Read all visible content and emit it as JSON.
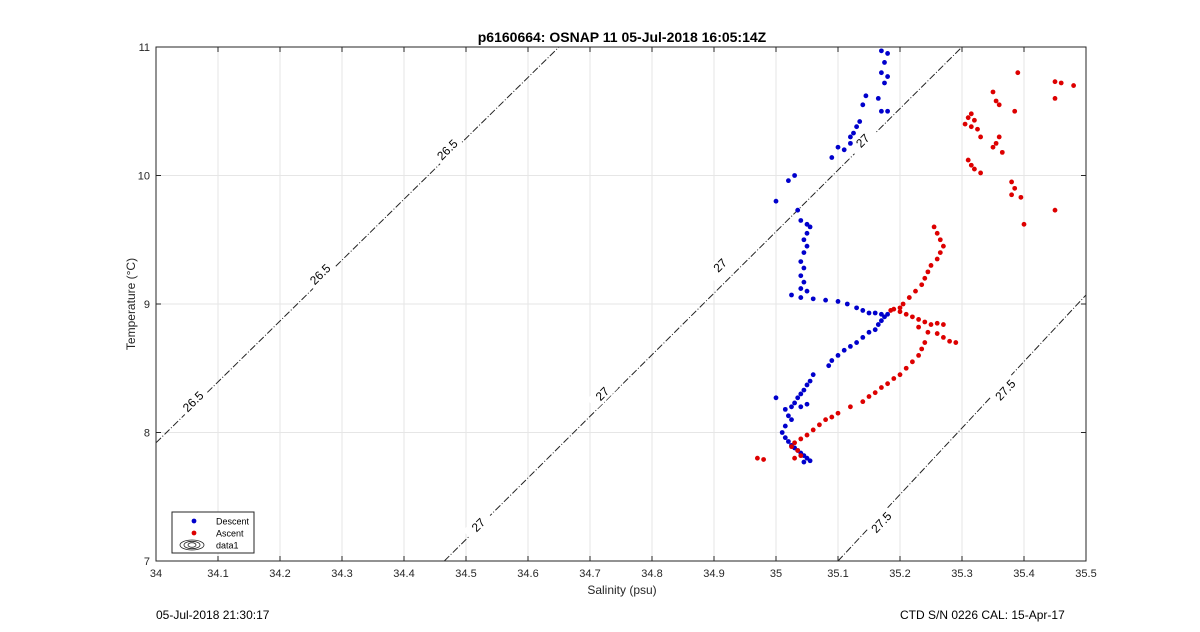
{
  "footer": {
    "left": "05-Jul-2018 21:30:17",
    "right": "CTD S/N 0226  CAL: 15-Apr-17"
  },
  "chart_data": {
    "type": "scatter",
    "title": "p6160664: OSNAP 11 05-Jul-2018 16:05:14Z",
    "xlabel": "Salinity (psu)",
    "ylabel": "Temperature (°C)",
    "xlim": [
      34,
      35.5
    ],
    "ylim": [
      7,
      11
    ],
    "xticks": [
      34,
      34.1,
      34.2,
      34.3,
      34.4,
      34.5,
      34.6,
      34.7,
      34.8,
      34.9,
      35,
      35.1,
      35.2,
      35.3,
      35.4,
      35.5
    ],
    "xtick_labels": [
      "34",
      "34.1",
      "34.2",
      "34.3",
      "34.4",
      "34.5",
      "34.6",
      "34.7",
      "34.8",
      "34.9",
      "35",
      "35.1",
      "35.2",
      "35.3",
      "35.4",
      "35.5"
    ],
    "yticks": [
      7,
      8,
      9,
      10,
      11
    ],
    "ytick_labels": [
      "7",
      "8",
      "9",
      "10",
      "11"
    ],
    "grid": true,
    "legend_position": "bottom-left",
    "legend": [
      "Descent",
      "Ascent",
      "data1"
    ],
    "contours": [
      {
        "level": 26.5,
        "label": "26.5",
        "line": [
          [
            34.0,
            7.92
          ],
          [
            34.65,
            11.0
          ]
        ],
        "label_positions": [
          [
            34.06,
            8.24
          ],
          [
            34.265,
            9.23
          ],
          [
            34.47,
            10.2
          ]
        ]
      },
      {
        "level": 27,
        "label": "27",
        "line": [
          [
            34.465,
            7.0
          ],
          [
            35.3,
            11.0
          ]
        ],
        "label_positions": [
          [
            34.52,
            7.28
          ],
          [
            34.72,
            8.3
          ],
          [
            34.91,
            9.3
          ],
          [
            35.14,
            10.27
          ]
        ]
      },
      {
        "level": 27.5,
        "label": "27.5",
        "line": [
          [
            35.1,
            7.0
          ],
          [
            35.5,
            9.07
          ]
        ],
        "label_positions": [
          [
            35.17,
            7.3
          ],
          [
            35.37,
            8.33
          ]
        ]
      }
    ],
    "series": [
      {
        "name": "Descent",
        "color": "#0000cc",
        "points": [
          [
            35.17,
            10.97
          ],
          [
            35.18,
            10.95
          ],
          [
            35.175,
            10.88
          ],
          [
            35.17,
            10.8
          ],
          [
            35.18,
            10.77
          ],
          [
            35.175,
            10.72
          ],
          [
            35.165,
            10.6
          ],
          [
            35.17,
            10.5
          ],
          [
            35.18,
            10.5
          ],
          [
            35.145,
            10.62
          ],
          [
            35.14,
            10.55
          ],
          [
            35.135,
            10.42
          ],
          [
            35.13,
            10.38
          ],
          [
            35.125,
            10.33
          ],
          [
            35.12,
            10.3
          ],
          [
            35.12,
            10.25
          ],
          [
            35.11,
            10.2
          ],
          [
            35.1,
            10.22
          ],
          [
            35.09,
            10.14
          ],
          [
            35.03,
            10.0
          ],
          [
            35.02,
            9.96
          ],
          [
            35.0,
            9.8
          ],
          [
            35.035,
            9.73
          ],
          [
            35.04,
            9.65
          ],
          [
            35.05,
            9.62
          ],
          [
            35.055,
            9.6
          ],
          [
            35.05,
            9.55
          ],
          [
            35.045,
            9.5
          ],
          [
            35.05,
            9.45
          ],
          [
            35.045,
            9.4
          ],
          [
            35.04,
            9.33
          ],
          [
            35.045,
            9.28
          ],
          [
            35.04,
            9.22
          ],
          [
            35.045,
            9.17
          ],
          [
            35.04,
            9.12
          ],
          [
            35.05,
            9.1
          ],
          [
            35.025,
            9.07
          ],
          [
            35.04,
            9.05
          ],
          [
            35.06,
            9.04
          ],
          [
            35.08,
            9.03
          ],
          [
            35.1,
            9.02
          ],
          [
            35.115,
            9.0
          ],
          [
            35.13,
            8.97
          ],
          [
            35.14,
            8.95
          ],
          [
            35.15,
            8.93
          ],
          [
            35.16,
            8.93
          ],
          [
            35.17,
            8.92
          ],
          [
            35.18,
            8.92
          ],
          [
            35.175,
            8.9
          ],
          [
            35.17,
            8.87
          ],
          [
            35.165,
            8.84
          ],
          [
            35.16,
            8.8
          ],
          [
            35.15,
            8.78
          ],
          [
            35.14,
            8.74
          ],
          [
            35.13,
            8.7
          ],
          [
            35.12,
            8.67
          ],
          [
            35.11,
            8.64
          ],
          [
            35.1,
            8.6
          ],
          [
            35.09,
            8.56
          ],
          [
            35.085,
            8.52
          ],
          [
            35.06,
            8.45
          ],
          [
            35.055,
            8.4
          ],
          [
            35.05,
            8.37
          ],
          [
            35.045,
            8.33
          ],
          [
            35.04,
            8.3
          ],
          [
            35.035,
            8.27
          ],
          [
            35.03,
            8.23
          ],
          [
            35.025,
            8.2
          ],
          [
            35.015,
            8.18
          ],
          [
            35.0,
            8.27
          ],
          [
            35.05,
            8.22
          ],
          [
            35.04,
            8.2
          ],
          [
            35.02,
            8.13
          ],
          [
            35.025,
            8.1
          ],
          [
            35.015,
            8.05
          ],
          [
            35.01,
            8.0
          ],
          [
            35.015,
            7.96
          ],
          [
            35.02,
            7.93
          ],
          [
            35.025,
            7.9
          ],
          [
            35.03,
            7.88
          ],
          [
            35.035,
            7.86
          ],
          [
            35.04,
            7.84
          ],
          [
            35.045,
            7.82
          ],
          [
            35.05,
            7.8
          ],
          [
            35.055,
            7.78
          ],
          [
            35.045,
            7.77
          ]
        ]
      },
      {
        "name": "Ascent",
        "color": "#dd0000",
        "points": [
          [
            35.45,
            10.73
          ],
          [
            35.46,
            10.72
          ],
          [
            35.48,
            10.7
          ],
          [
            35.45,
            10.6
          ],
          [
            35.39,
            10.8
          ],
          [
            35.385,
            10.5
          ],
          [
            35.35,
            10.65
          ],
          [
            35.355,
            10.58
          ],
          [
            35.36,
            10.55
          ],
          [
            35.315,
            10.48
          ],
          [
            35.31,
            10.45
          ],
          [
            35.32,
            10.43
          ],
          [
            35.305,
            10.4
          ],
          [
            35.315,
            10.38
          ],
          [
            35.325,
            10.36
          ],
          [
            35.33,
            10.3
          ],
          [
            35.36,
            10.3
          ],
          [
            35.355,
            10.25
          ],
          [
            35.35,
            10.22
          ],
          [
            35.365,
            10.18
          ],
          [
            35.31,
            10.12
          ],
          [
            35.315,
            10.08
          ],
          [
            35.32,
            10.05
          ],
          [
            35.33,
            10.02
          ],
          [
            35.38,
            9.95
          ],
          [
            35.385,
            9.9
          ],
          [
            35.38,
            9.85
          ],
          [
            35.395,
            9.83
          ],
          [
            35.45,
            9.73
          ],
          [
            35.4,
            9.62
          ],
          [
            35.255,
            9.6
          ],
          [
            35.26,
            9.55
          ],
          [
            35.265,
            9.5
          ],
          [
            35.27,
            9.45
          ],
          [
            35.265,
            9.4
          ],
          [
            35.26,
            9.35
          ],
          [
            35.25,
            9.3
          ],
          [
            35.245,
            9.25
          ],
          [
            35.24,
            9.2
          ],
          [
            35.235,
            9.15
          ],
          [
            35.225,
            9.1
          ],
          [
            35.215,
            9.05
          ],
          [
            35.205,
            9.0
          ],
          [
            35.2,
            8.97
          ],
          [
            35.19,
            8.96
          ],
          [
            35.185,
            8.95
          ],
          [
            35.2,
            8.94
          ],
          [
            35.21,
            8.92
          ],
          [
            35.22,
            8.9
          ],
          [
            35.23,
            8.88
          ],
          [
            35.24,
            8.86
          ],
          [
            35.25,
            8.84
          ],
          [
            35.26,
            8.85
          ],
          [
            35.27,
            8.84
          ],
          [
            35.23,
            8.82
          ],
          [
            35.245,
            8.78
          ],
          [
            35.26,
            8.77
          ],
          [
            35.27,
            8.74
          ],
          [
            35.28,
            8.71
          ],
          [
            35.29,
            8.7
          ],
          [
            35.24,
            8.7
          ],
          [
            35.235,
            8.65
          ],
          [
            35.23,
            8.6
          ],
          [
            35.22,
            8.55
          ],
          [
            35.21,
            8.5
          ],
          [
            35.2,
            8.45
          ],
          [
            35.19,
            8.42
          ],
          [
            35.18,
            8.38
          ],
          [
            35.17,
            8.35
          ],
          [
            35.16,
            8.31
          ],
          [
            35.15,
            8.28
          ],
          [
            35.14,
            8.24
          ],
          [
            35.12,
            8.2
          ],
          [
            35.1,
            8.15
          ],
          [
            35.09,
            8.12
          ],
          [
            35.08,
            8.1
          ],
          [
            35.07,
            8.06
          ],
          [
            35.06,
            8.02
          ],
          [
            35.05,
            7.98
          ],
          [
            35.04,
            7.95
          ],
          [
            35.03,
            7.92
          ],
          [
            35.025,
            7.89
          ],
          [
            35.035,
            7.86
          ],
          [
            35.04,
            7.82
          ],
          [
            35.03,
            7.8
          ],
          [
            34.97,
            7.8
          ],
          [
            34.98,
            7.79
          ]
        ]
      }
    ]
  }
}
